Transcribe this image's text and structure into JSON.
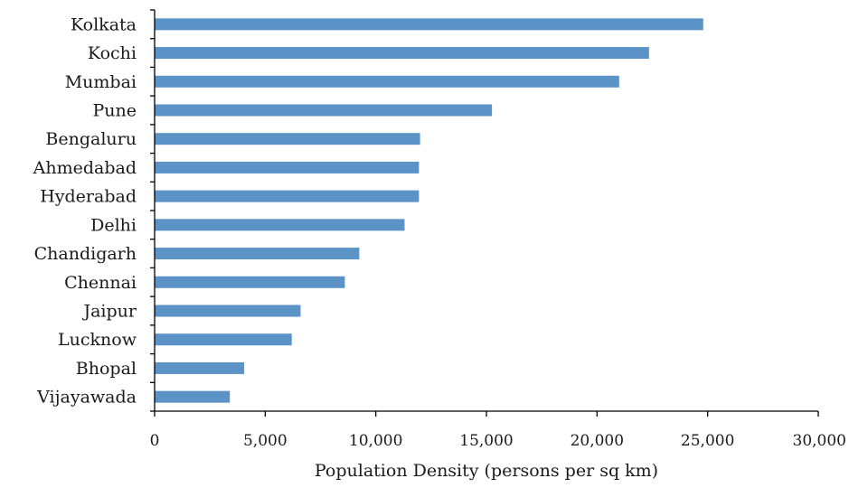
{
  "chart_data": {
    "type": "bar",
    "orientation": "horizontal",
    "categories": [
      "Kolkata",
      "Kochi",
      "Mumbai",
      "Pune",
      "Bengaluru",
      "Ahmedabad",
      "Hyderabad",
      "Delhi",
      "Chandigarh",
      "Chennai",
      "Jaipur",
      "Lucknow",
      "Bhopal",
      "Vijayawada"
    ],
    "values": [
      24800,
      22350,
      21000,
      15250,
      12000,
      11950,
      11950,
      11300,
      9250,
      8600,
      6600,
      6200,
      4050,
      3400
    ],
    "title": "",
    "xlabel": "Population Density (persons per sq km)",
    "ylabel": "",
    "xlim": [
      0,
      30000
    ],
    "xticks": [
      0,
      5000,
      10000,
      15000,
      20000,
      25000,
      30000
    ],
    "xtick_labels": [
      "0",
      "5,000",
      "10,000",
      "15,000",
      "20,000",
      "25,000",
      "30,000"
    ],
    "grid": false,
    "legend": "none",
    "bar_color": "#5b93c6"
  }
}
